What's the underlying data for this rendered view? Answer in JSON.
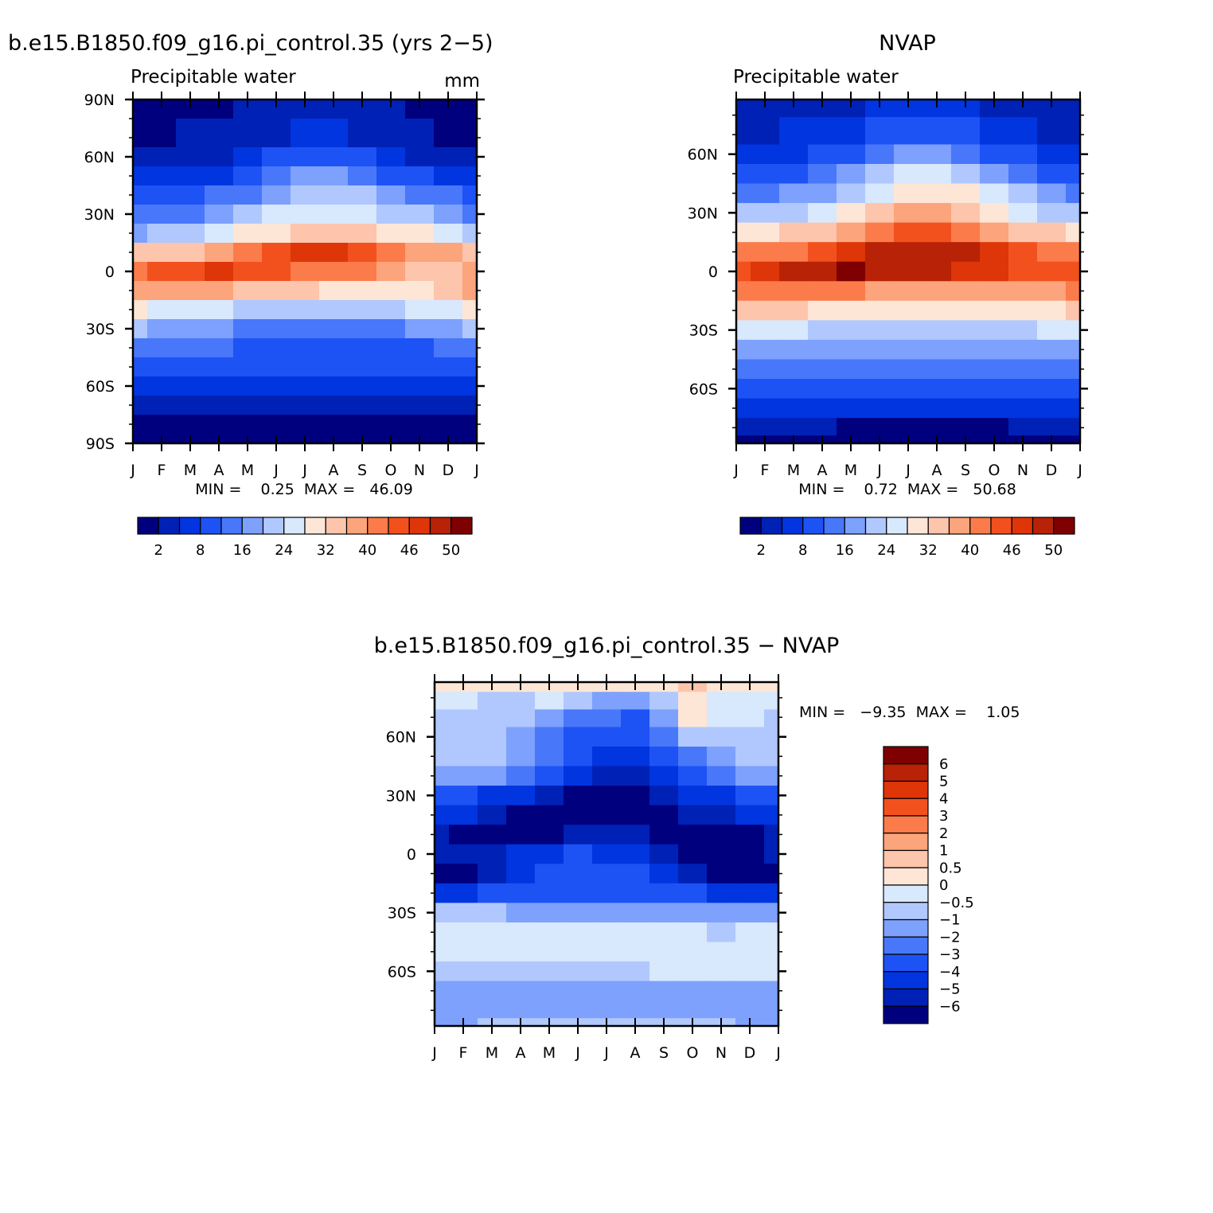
{
  "chart_data": [
    {
      "type": "heatmap",
      "title": "b.e15.B1850.f09_g16.pi_control.35 (yrs 2-5)",
      "subtitle_left": "Precipitable water",
      "subtitle_right": "mm",
      "min_max_text": "MIN =    0.25  MAX =   46.09",
      "x_labels": [
        "J",
        "F",
        "M",
        "A",
        "M",
        "J",
        "J",
        "A",
        "S",
        "O",
        "N",
        "D",
        "J"
      ],
      "y_labels": [
        "90N",
        "60N",
        "30N",
        "0",
        "30S",
        "60S",
        "90S"
      ],
      "y_ticks": [
        90,
        60,
        30,
        0,
        -30,
        -60,
        -90
      ],
      "ylim": [
        -90,
        90
      ],
      "colorbar_labels": [
        "2",
        "8",
        "16",
        "24",
        "32",
        "40",
        "46",
        "50"
      ],
      "colors": [
        "#00007f",
        "#0021b5",
        "#0035e0",
        "#1d52f5",
        "#4877fa",
        "#7da1fc",
        "#b0c8fd",
        "#d8e8fd",
        "#fde6d6",
        "#fdc5ac",
        "#fca47b",
        "#fb7b4b",
        "#f2511e",
        "#de3509",
        "#b82206",
        "#7e0000"
      ],
      "rows_lat": [
        90,
        70,
        60,
        50,
        40,
        30,
        20,
        10,
        0,
        -10,
        -20,
        -30,
        -40,
        -50,
        -60,
        -70,
        -80,
        -90
      ],
      "grid": [
        [
          0,
          0,
          0,
          0,
          1,
          1,
          1,
          1,
          1,
          1,
          0,
          0,
          0
        ],
        [
          0,
          0,
          1,
          1,
          1,
          1,
          2,
          2,
          1,
          1,
          1,
          0,
          0
        ],
        [
          1,
          1,
          1,
          1,
          2,
          3,
          3,
          3,
          3,
          2,
          1,
          1,
          1
        ],
        [
          2,
          2,
          2,
          2,
          3,
          4,
          5,
          5,
          4,
          3,
          3,
          2,
          2
        ],
        [
          3,
          3,
          3,
          4,
          4,
          5,
          6,
          6,
          6,
          5,
          4,
          4,
          3
        ],
        [
          4,
          4,
          4,
          5,
          6,
          7,
          7,
          7,
          7,
          6,
          6,
          5,
          4
        ],
        [
          5,
          6,
          6,
          7,
          8,
          8,
          9,
          9,
          9,
          8,
          8,
          7,
          6
        ],
        [
          9,
          9,
          9,
          10,
          11,
          12,
          13,
          13,
          12,
          11,
          10,
          10,
          9
        ],
        [
          11,
          12,
          12,
          13,
          12,
          12,
          11,
          11,
          11,
          10,
          9,
          9,
          10
        ],
        [
          10,
          10,
          10,
          10,
          9,
          9,
          9,
          8,
          8,
          8,
          8,
          9,
          10
        ],
        [
          8,
          7,
          7,
          7,
          6,
          6,
          6,
          6,
          6,
          6,
          7,
          7,
          8
        ],
        [
          6,
          5,
          5,
          5,
          4,
          4,
          4,
          4,
          4,
          4,
          5,
          5,
          6
        ],
        [
          4,
          4,
          4,
          4,
          3,
          3,
          3,
          3,
          3,
          3,
          3,
          4,
          4
        ],
        [
          3,
          3,
          3,
          3,
          3,
          3,
          3,
          3,
          3,
          3,
          3,
          3,
          3
        ],
        [
          2,
          2,
          2,
          2,
          2,
          2,
          2,
          2,
          2,
          2,
          2,
          2,
          2
        ],
        [
          1,
          1,
          1,
          1,
          1,
          1,
          1,
          1,
          1,
          1,
          1,
          1,
          1
        ],
        [
          0,
          0,
          0,
          0,
          0,
          0,
          0,
          0,
          0,
          0,
          0,
          0,
          0
        ],
        [
          0,
          0,
          0,
          0,
          0,
          0,
          0,
          0,
          0,
          0,
          0,
          0,
          0
        ]
      ]
    },
    {
      "type": "heatmap",
      "title": "NVAP",
      "subtitle_left": "Precipitable water",
      "subtitle_right": "",
      "min_max_text": "MIN =    0.72  MAX =   50.68",
      "x_labels": [
        "J",
        "F",
        "M",
        "A",
        "M",
        "J",
        "J",
        "A",
        "S",
        "O",
        "N",
        "D",
        "J"
      ],
      "y_labels": [
        "60N",
        "30N",
        "0",
        "30S",
        "60S"
      ],
      "y_ticks": [
        60,
        30,
        0,
        -30,
        -60
      ],
      "ylim": [
        -88,
        88
      ],
      "colorbar_labels": [
        "2",
        "8",
        "16",
        "24",
        "32",
        "40",
        "46",
        "50"
      ],
      "colors": [
        "#00007f",
        "#0021b5",
        "#0035e0",
        "#1d52f5",
        "#4877fa",
        "#7da1fc",
        "#b0c8fd",
        "#d8e8fd",
        "#fde6d6",
        "#fdc5ac",
        "#fca47b",
        "#fb7b4b",
        "#f2511e",
        "#de3509",
        "#b82206",
        "#7e0000"
      ],
      "rows_lat": [
        88,
        70,
        60,
        50,
        40,
        30,
        20,
        10,
        0,
        -10,
        -20,
        -30,
        -40,
        -50,
        -60,
        -70,
        -80,
        -88
      ],
      "grid": [
        [
          1,
          1,
          1,
          1,
          1,
          2,
          2,
          2,
          2,
          1,
          1,
          1,
          1
        ],
        [
          1,
          1,
          2,
          2,
          2,
          3,
          3,
          3,
          3,
          2,
          2,
          1,
          1
        ],
        [
          2,
          2,
          2,
          3,
          3,
          4,
          5,
          5,
          4,
          3,
          3,
          2,
          2
        ],
        [
          3,
          3,
          3,
          4,
          5,
          6,
          7,
          7,
          6,
          5,
          4,
          3,
          3
        ],
        [
          4,
          4,
          5,
          5,
          6,
          7,
          8,
          8,
          8,
          7,
          6,
          5,
          4
        ],
        [
          6,
          6,
          6,
          7,
          8,
          9,
          10,
          10,
          9,
          8,
          7,
          6,
          6
        ],
        [
          8,
          8,
          9,
          9,
          10,
          11,
          12,
          12,
          11,
          10,
          9,
          9,
          8
        ],
        [
          11,
          11,
          11,
          12,
          13,
          14,
          14,
          14,
          14,
          13,
          12,
          11,
          11
        ],
        [
          12,
          13,
          14,
          14,
          15,
          14,
          14,
          14,
          13,
          13,
          12,
          12,
          12
        ],
        [
          11,
          11,
          11,
          11,
          11,
          10,
          10,
          10,
          10,
          10,
          10,
          10,
          11
        ],
        [
          9,
          9,
          9,
          8,
          8,
          8,
          8,
          8,
          8,
          8,
          8,
          8,
          9
        ],
        [
          7,
          7,
          7,
          6,
          6,
          6,
          6,
          6,
          6,
          6,
          6,
          7,
          7
        ],
        [
          5,
          5,
          5,
          5,
          5,
          5,
          5,
          5,
          5,
          5,
          5,
          5,
          5
        ],
        [
          4,
          4,
          4,
          4,
          4,
          4,
          4,
          4,
          4,
          4,
          4,
          4,
          4
        ],
        [
          3,
          3,
          3,
          3,
          3,
          3,
          3,
          3,
          3,
          3,
          3,
          3,
          3
        ],
        [
          2,
          2,
          2,
          2,
          2,
          2,
          2,
          2,
          2,
          2,
          2,
          2,
          2
        ],
        [
          1,
          1,
          1,
          1,
          0,
          0,
          0,
          0,
          0,
          0,
          1,
          1,
          1
        ],
        [
          0,
          0,
          0,
          0,
          0,
          0,
          0,
          0,
          0,
          0,
          0,
          0,
          0
        ]
      ]
    },
    {
      "type": "heatmap",
      "title": "b.e15.B1850.f09_g16.pi_control.35 - NVAP",
      "min_max_text": "MIN =   -9.35  MAX =    1.05",
      "x_labels": [
        "J",
        "F",
        "M",
        "A",
        "M",
        "J",
        "J",
        "A",
        "S",
        "O",
        "N",
        "D",
        "J"
      ],
      "y_labels": [
        "60N",
        "30N",
        "0",
        "30S",
        "60S"
      ],
      "y_ticks": [
        60,
        30,
        0,
        -30,
        -60
      ],
      "ylim": [
        -88,
        88
      ],
      "colorbar_labels": [
        "6",
        "5",
        "4",
        "3",
        "2",
        "1",
        "0.5",
        "0",
        "-0.5",
        "-1",
        "-2",
        "-3",
        "-4",
        "-5",
        "-6"
      ],
      "colors": [
        "#7e0000",
        "#b82206",
        "#de3509",
        "#f2511e",
        "#fb7b4b",
        "#fca47b",
        "#fdc5ac",
        "#fde6d6",
        "#d8e8fd",
        "#b0c8fd",
        "#7da1fc",
        "#4877fa",
        "#1d52f5",
        "#0035e0",
        "#0021b5",
        "#00007f"
      ],
      "diff_colors": [
        "#00007f",
        "#0021b5",
        "#0035e0",
        "#1d52f5",
        "#4877fa",
        "#7da1fc",
        "#b0c8fd",
        "#d8e8fd",
        "#fde6d6",
        "#fdc5ac"
      ],
      "rows_lat": [
        88,
        78,
        70,
        60,
        50,
        40,
        30,
        20,
        10,
        0,
        -10,
        -20,
        -30,
        -40,
        -50,
        -60,
        -70,
        -80,
        -88
      ],
      "grid": [
        [
          8,
          8,
          8,
          8,
          8,
          8,
          8,
          8,
          8,
          9,
          8,
          8,
          8
        ],
        [
          7,
          7,
          6,
          6,
          7,
          6,
          5,
          5,
          6,
          8,
          7,
          7,
          7
        ],
        [
          6,
          6,
          6,
          6,
          5,
          4,
          4,
          3,
          5,
          8,
          7,
          7,
          6
        ],
        [
          6,
          6,
          6,
          5,
          4,
          3,
          3,
          3,
          4,
          6,
          6,
          6,
          6
        ],
        [
          6,
          6,
          6,
          5,
          4,
          3,
          2,
          2,
          3,
          4,
          5,
          6,
          6
        ],
        [
          5,
          5,
          5,
          4,
          3,
          2,
          1,
          1,
          2,
          3,
          4,
          5,
          5
        ],
        [
          3,
          3,
          2,
          2,
          1,
          0,
          0,
          0,
          1,
          2,
          2,
          3,
          3
        ],
        [
          2,
          2,
          1,
          0,
          0,
          0,
          0,
          0,
          0,
          1,
          1,
          2,
          2
        ],
        [
          1,
          0,
          0,
          0,
          0,
          1,
          1,
          1,
          0,
          0,
          0,
          0,
          1
        ],
        [
          1,
          1,
          1,
          2,
          2,
          3,
          2,
          2,
          1,
          0,
          0,
          0,
          1
        ],
        [
          0,
          0,
          1,
          2,
          3,
          3,
          3,
          3,
          2,
          1,
          0,
          0,
          0
        ],
        [
          2,
          2,
          3,
          3,
          3,
          3,
          3,
          3,
          3,
          3,
          2,
          2,
          2
        ],
        [
          6,
          6,
          6,
          5,
          5,
          5,
          5,
          5,
          5,
          5,
          5,
          5,
          5
        ],
        [
          7,
          7,
          7,
          7,
          7,
          7,
          7,
          7,
          7,
          7,
          6,
          7,
          7
        ],
        [
          7,
          7,
          7,
          7,
          7,
          7,
          7,
          7,
          7,
          7,
          7,
          7,
          7
        ],
        [
          6,
          6,
          6,
          6,
          6,
          6,
          6,
          6,
          7,
          7,
          7,
          7,
          7
        ],
        [
          5,
          5,
          5,
          5,
          5,
          5,
          5,
          5,
          5,
          5,
          5,
          5,
          5
        ],
        [
          5,
          5,
          5,
          5,
          5,
          5,
          5,
          5,
          5,
          5,
          5,
          5,
          5
        ],
        [
          5,
          5,
          6,
          6,
          6,
          6,
          6,
          6,
          6,
          6,
          6,
          5,
          5
        ]
      ]
    }
  ]
}
